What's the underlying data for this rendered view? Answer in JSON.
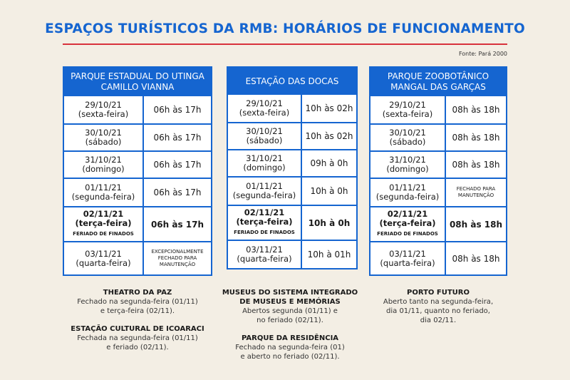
{
  "title": "ESPAÇOS TURÍSTICOS DA RMB: HORÁRIOS DE FUNCIONAMENTO",
  "source": "Fonte: Pará 2000",
  "cards": [
    {
      "header": [
        "PARQUE ESTADUAL DO UTINGA",
        "CAMILLO VIANNA"
      ],
      "rows": [
        {
          "date": "29/10/21",
          "weekday": "(sexta-feira)",
          "hours": "06h às 17h"
        },
        {
          "date": "30/10/21",
          "weekday": "(sábado)",
          "hours": "06h às 17h"
        },
        {
          "date": "31/10/21",
          "weekday": "(domingo)",
          "hours": "06h às 17h"
        },
        {
          "date": "01/11/21",
          "weekday": "(segunda-feira)",
          "hours": "06h às 17h"
        },
        {
          "date": "02/11/21",
          "weekday": "(terça-feira)",
          "note": "FERIADO DE FINADOS",
          "hours": "06h às 17h",
          "bold": true
        },
        {
          "date": "03/11/21",
          "weekday": "(quarta-feira)",
          "hours_lines": [
            "EXCEPCIONALMENTE",
            "FECHADO PARA",
            "MANUTENÇÃO"
          ]
        }
      ]
    },
    {
      "header": [
        "ESTAÇÃO DAS DOCAS"
      ],
      "rows": [
        {
          "date": "29/10/21",
          "weekday": "(sexta-feira)",
          "hours": "10h às 02h"
        },
        {
          "date": "30/10/21",
          "weekday": "(sábado)",
          "hours": "10h às 02h"
        },
        {
          "date": "31/10/21",
          "weekday": "(domingo)",
          "hours": "09h à 0h"
        },
        {
          "date": "01/11/21",
          "weekday": "(segunda-feira)",
          "hours": "10h à 0h"
        },
        {
          "date": "02/11/21",
          "weekday": "(terça-feira)",
          "note": "FERIADO DE FINADOS",
          "hours": "10h à 0h",
          "bold": true
        },
        {
          "date": "03/11/21",
          "weekday": "(quarta-feira)",
          "hours": "10h à 01h"
        }
      ]
    },
    {
      "header": [
        "PARQUE ZOOBOTÂNICO",
        "MANGAL DAS GARÇAS"
      ],
      "rows": [
        {
          "date": "29/10/21",
          "weekday": "(sexta-feira)",
          "hours": "08h às 18h"
        },
        {
          "date": "30/10/21",
          "weekday": "(sábado)",
          "hours": "08h às 18h"
        },
        {
          "date": "31/10/21",
          "weekday": "(domingo)",
          "hours": "08h às 18h"
        },
        {
          "date": "01/11/21",
          "weekday": "(segunda-feira)",
          "hours_lines": [
            "FECHADO PARA",
            "MANUTENÇÃO"
          ]
        },
        {
          "date": "02/11/21",
          "weekday": "(terça-feira)",
          "note": "FERIADO DE FINADOS",
          "hours": "08h às 18h",
          "bold": true
        },
        {
          "date": "03/11/21",
          "weekday": "(quarta-feira)",
          "hours": "08h às 18h"
        }
      ]
    }
  ],
  "notes": [
    [
      {
        "title": [
          "THEATRO DA PAZ"
        ],
        "body": [
          "Fechado na segunda-feira (01/11)",
          "e terça-feira (02/11)."
        ]
      },
      {
        "title": [
          "ESTAÇÃO CULTURAL DE ICOARACI"
        ],
        "body": [
          "Fechada na segunda-feira (01/11)",
          "e feriado (02/11)."
        ]
      }
    ],
    [
      {
        "title": [
          "MUSEUS DO SISTEMA INTEGRADO",
          "DE MUSEUS E MEMÓRIAS"
        ],
        "body": [
          "Abertos segunda (01/11) e",
          "no feriado (02/11)."
        ]
      },
      {
        "title": [
          "PARQUE DA RESIDÊNCIA"
        ],
        "body": [
          "Fechado na segunda-feira (01)",
          "e aberto no feriado (02/11)."
        ]
      }
    ],
    [
      {
        "title": [
          "PORTO FUTURO"
        ],
        "body": [
          "Aberto tanto na segunda-feira,",
          "dia 01/11, quanto no feriado,",
          "dia 02/11."
        ]
      }
    ]
  ]
}
